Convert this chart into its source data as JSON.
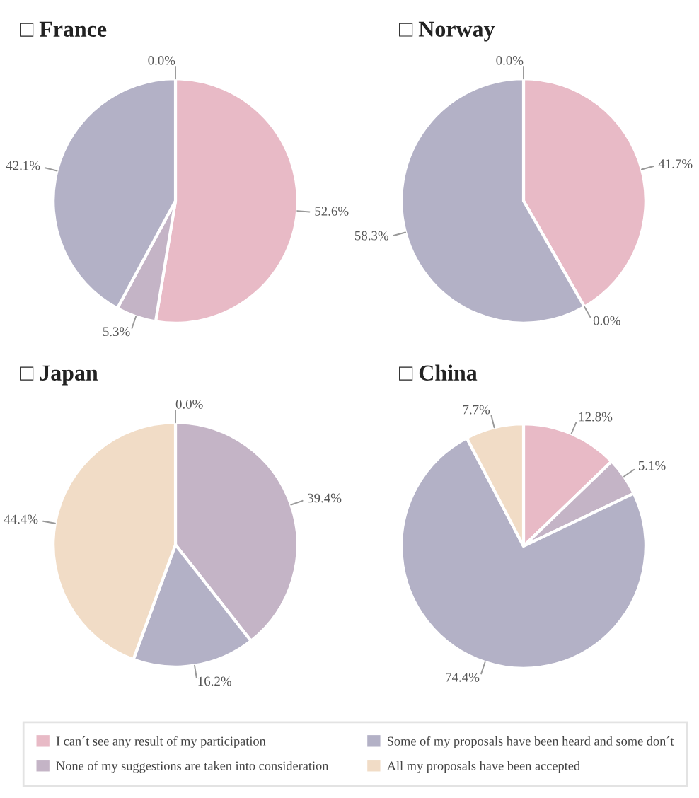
{
  "chart_data": [
    {
      "type": "pie",
      "title": "□ France",
      "categories": [
        "I can´t see any result of my participation",
        "None of my suggestions are taken into consideration",
        "Some of my proposals have been heard and some don´t",
        "All my proposals have been accepted"
      ],
      "values": [
        52.6,
        5.3,
        42.1,
        0.0
      ],
      "colors": [
        "#e8bac6",
        "#c4b4c6",
        "#b3b1c6",
        "#f1dcc6"
      ],
      "value_labels": [
        "52.6%",
        "5.3%",
        "42.1%",
        "0.0%"
      ],
      "legend": "bottom"
    },
    {
      "type": "pie",
      "title": "□ Norway",
      "categories": [
        null,
        null,
        null,
        null
      ],
      "values": [
        41.7,
        0.0,
        58.3,
        0.0
      ],
      "colors": [
        "#e8bac6",
        "#c4b4c6",
        "#b3b1c6",
        "#f1dcc6"
      ],
      "value_labels": [
        "41.7%",
        "0.0%",
        "58.3%",
        "0.0%"
      ]
    },
    {
      "type": "pie",
      "title": "□ Japan",
      "categories": [
        null,
        null,
        null,
        null
      ],
      "values": [
        0.0,
        39.4,
        16.2,
        44.4
      ],
      "colors": [
        "#e8bac6",
        "#c4b4c6",
        "#b3b1c6",
        "#f1dcc6"
      ],
      "value_labels": [
        "0.0%",
        "39.4%",
        "16.2%",
        "44.4%"
      ]
    },
    {
      "type": "pie",
      "title": "□ China",
      "categories": [
        null,
        null,
        null,
        null
      ],
      "values": [
        12.8,
        5.1,
        74.4,
        7.7
      ],
      "colors": [
        "#e8bac6",
        "#c4b4c6",
        "#b3b1c6",
        "#f1dcc6"
      ],
      "value_labels": [
        "12.8%",
        "5.1%",
        "74.4%",
        "7.7%"
      ]
    }
  ]
}
